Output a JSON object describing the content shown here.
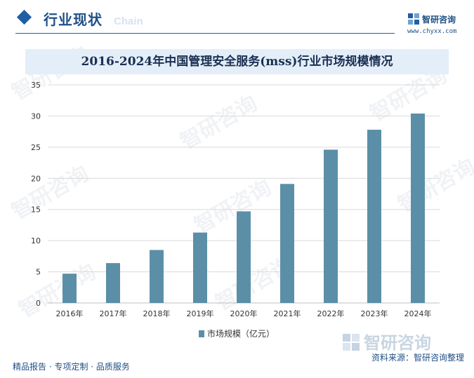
{
  "header": {
    "section_title": "行业现状",
    "ghost_text": "Chain",
    "brand_name": "智研咨询",
    "brand_url": "www.chyxx.com"
  },
  "chart_data": {
    "type": "bar",
    "title": "2016-2024年中国管理安全服务(mss)行业市场规模情况",
    "categories": [
      "2016年",
      "2017年",
      "2018年",
      "2019年",
      "2020年",
      "2021年",
      "2022年",
      "2023年",
      "2024年"
    ],
    "series": [
      {
        "name": "市场规模（亿元）",
        "values": [
          4.7,
          6.4,
          8.5,
          11.3,
          14.7,
          19.1,
          24.6,
          27.8,
          30.4
        ]
      }
    ],
    "ylim": [
      0,
      35
    ],
    "yticks": [
      0,
      5,
      10,
      15,
      20,
      25,
      30,
      35
    ],
    "xlabel": "",
    "ylabel": "",
    "grid": true,
    "legend_position": "bottom",
    "colors": {
      "bar": "#5b8fa8",
      "grid": "#d9d9d9",
      "axis": "#bfbfbf",
      "text": "#333333"
    }
  },
  "footer": {
    "left": "精品报告 · 专项定制 · 品质服务",
    "source": "资料来源：智研咨询整理",
    "logo_text": "智研咨询"
  },
  "watermark": {
    "text": "智研咨询"
  }
}
